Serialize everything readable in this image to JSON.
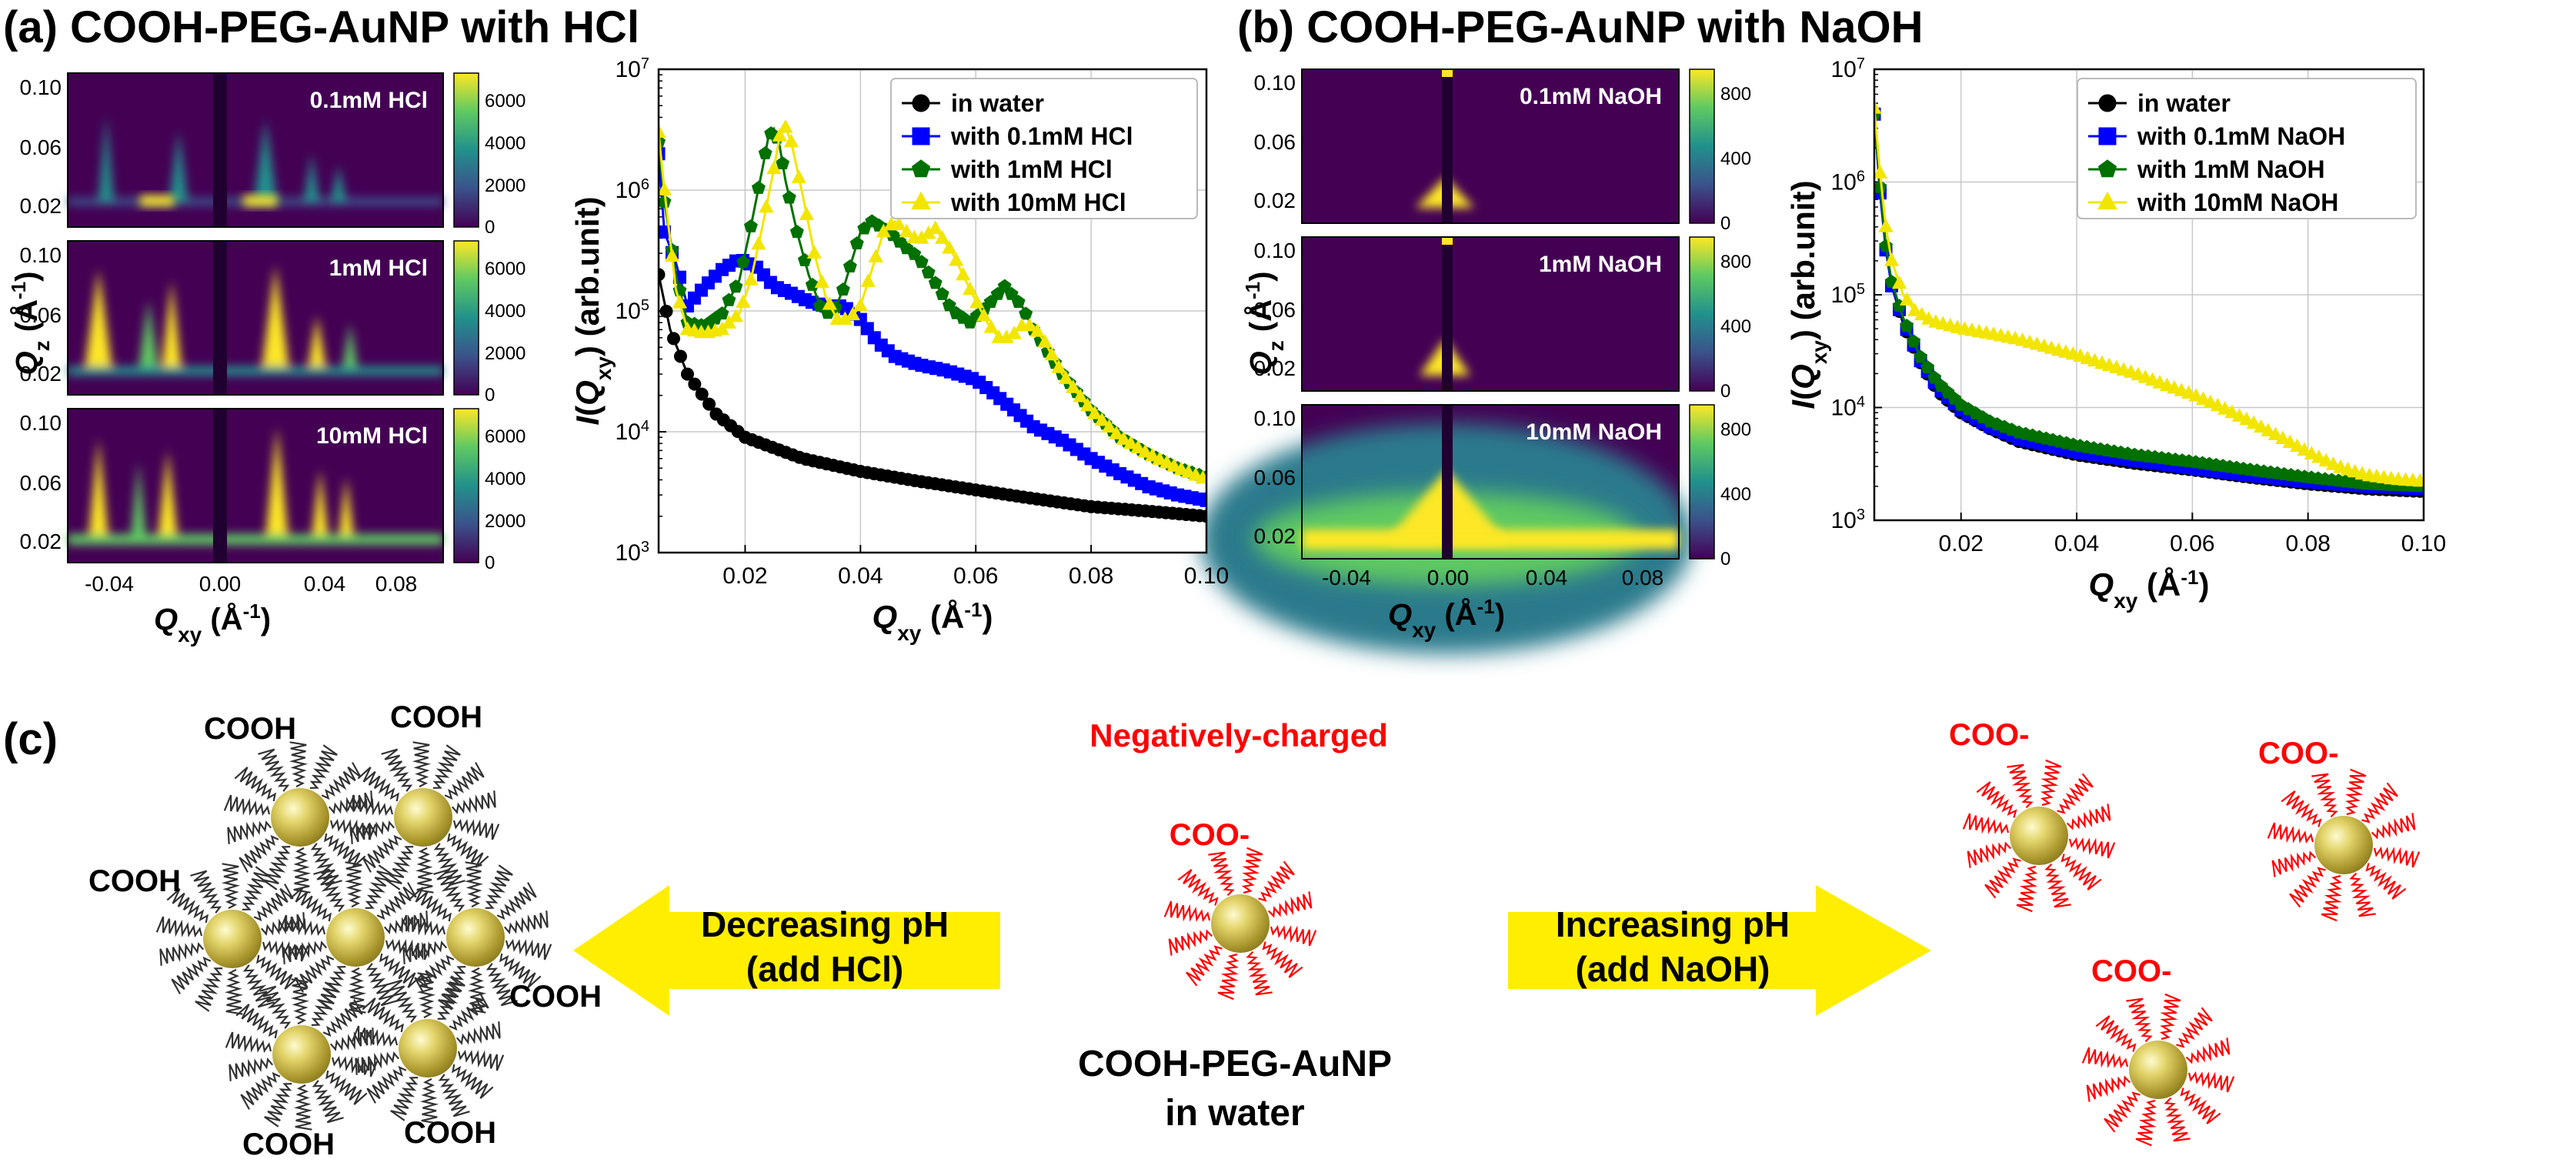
{
  "panels": {
    "a": {
      "letter": "(a)",
      "title": "COOH-PEG-AuNP with HCl"
    },
    "b": {
      "letter": "(b)",
      "title": "COOH-PEG-AuNP with NaOH"
    },
    "c": {
      "letter": "(c)"
    }
  },
  "maps_a": {
    "labels": [
      "0.1mM HCl",
      "1mM HCl",
      "10mM HCl"
    ],
    "colorbar_ticks": [
      "0",
      "2000",
      "4000",
      "6000"
    ],
    "colorbar_range": [
      0,
      7000
    ],
    "y_ticks": [
      "0.02",
      "0.06",
      "0.10"
    ],
    "x_ticks": [
      "-0.04",
      "0.00",
      "0.04",
      "0.08"
    ],
    "xlabel_main": "Q",
    "xlabel_sub": "xy",
    "xlabel_unit": " (Å",
    "xlabel_exp": "-1",
    "xlabel_close": ")",
    "ylabel_main": "Q",
    "ylabel_sub": "z",
    "ylabel_unit": " (Å",
    "ylabel_exp": "-1",
    "ylabel_close": ")"
  },
  "maps_b": {
    "labels": [
      "0.1mM NaOH",
      "1mM NaOH",
      "10mM NaOH"
    ],
    "colorbar_ticks": [
      "0",
      "400",
      "800"
    ],
    "colorbar_range": [
      0,
      950
    ],
    "y_ticks": [
      "0.02",
      "0.06",
      "0.10"
    ],
    "x_ticks": [
      "-0.04",
      "0.00",
      "0.04",
      "0.08"
    ]
  },
  "chart_data": [
    {
      "type": "line",
      "panel": "a",
      "title": "",
      "xlabel": "Qxy (Å-1)",
      "ylabel": "I(Qxy) (arb.unit)",
      "xlim": [
        0.005,
        0.1
      ],
      "ylim": [
        1000,
        10000000
      ],
      "yscale": "log",
      "x_ticks": [
        "0.02",
        "0.04",
        "0.06",
        "0.08",
        "0.10"
      ],
      "x_tick_values": [
        0.02,
        0.04,
        0.06,
        0.08,
        0.1
      ],
      "y_tick_exponents": [
        3,
        4,
        5,
        6,
        7
      ],
      "series": [
        {
          "name": "in water",
          "color": "#000000",
          "marker": "circle",
          "x": [
            0.005,
            0.007,
            0.01,
            0.015,
            0.02,
            0.03,
            0.04,
            0.05,
            0.06,
            0.07,
            0.08,
            0.09,
            0.1
          ],
          "y": [
            200000,
            70000,
            30000,
            14000,
            9000,
            6000,
            4700,
            3900,
            3300,
            2800,
            2400,
            2200,
            2000
          ]
        },
        {
          "name": "with 0.1mM HCl",
          "color": "#0000ff",
          "marker": "square",
          "x": [
            0.005,
            0.006,
            0.008,
            0.01,
            0.013,
            0.016,
            0.019,
            0.022,
            0.025,
            0.028,
            0.031,
            0.034,
            0.037,
            0.04,
            0.043,
            0.046,
            0.05,
            0.055,
            0.06,
            0.063,
            0.066,
            0.07,
            0.075,
            0.08,
            0.085,
            0.09,
            0.095,
            0.1
          ],
          "y": [
            2000000,
            450000,
            250000,
            110000,
            160000,
            220000,
            270000,
            230000,
            160000,
            140000,
            120000,
            110000,
            110000,
            85000,
            55000,
            42000,
            36000,
            32000,
            27000,
            21000,
            16000,
            11000,
            8500,
            6000,
            4500,
            3500,
            3000,
            2700
          ]
        },
        {
          "name": "with 1mM HCl",
          "color": "#007000",
          "marker": "pentagon",
          "x": [
            0.005,
            0.006,
            0.008,
            0.01,
            0.013,
            0.016,
            0.019,
            0.021,
            0.023,
            0.024,
            0.025,
            0.026,
            0.027,
            0.029,
            0.031,
            0.033,
            0.035,
            0.037,
            0.04,
            0.042,
            0.045,
            0.048,
            0.05,
            0.053,
            0.056,
            0.059,
            0.062,
            0.065,
            0.068,
            0.07,
            0.075,
            0.08,
            0.085,
            0.09,
            0.095,
            0.1
          ],
          "y": [
            2500000,
            800000,
            200000,
            80000,
            75000,
            95000,
            180000,
            500000,
            1500000,
            2700000,
            3200000,
            2300000,
            1200000,
            450000,
            200000,
            110000,
            90000,
            150000,
            450000,
            550000,
            450000,
            330000,
            280000,
            170000,
            100000,
            80000,
            110000,
            160000,
            110000,
            70000,
            30000,
            15000,
            9000,
            6500,
            5000,
            4200
          ]
        },
        {
          "name": "with 10mM HCl",
          "color": "#f2e600",
          "marker": "triangle",
          "x": [
            0.005,
            0.006,
            0.008,
            0.01,
            0.013,
            0.016,
            0.019,
            0.021,
            0.023,
            0.025,
            0.026,
            0.027,
            0.028,
            0.03,
            0.032,
            0.034,
            0.036,
            0.038,
            0.04,
            0.042,
            0.044,
            0.046,
            0.048,
            0.05,
            0.053,
            0.056,
            0.059,
            0.062,
            0.064,
            0.066,
            0.068,
            0.07,
            0.072,
            0.075,
            0.08,
            0.085,
            0.09,
            0.095,
            0.1
          ],
          "y": [
            3000000,
            1000000,
            150000,
            70000,
            65000,
            70000,
            95000,
            180000,
            500000,
            1500000,
            2800000,
            3300000,
            2500000,
            900000,
            300000,
            130000,
            85000,
            85000,
            110000,
            220000,
            450000,
            550000,
            450000,
            380000,
            480000,
            300000,
            150000,
            80000,
            60000,
            60000,
            75000,
            75000,
            55000,
            30000,
            15000,
            9000,
            6500,
            5000,
            4000
          ]
        }
      ]
    },
    {
      "type": "line",
      "panel": "b",
      "title": "",
      "xlabel": "Qxy (Å-1)",
      "ylabel": "I(Qxy) (arb.unit)",
      "xlim": [
        0.005,
        0.1
      ],
      "ylim": [
        1000,
        10000000
      ],
      "yscale": "log",
      "x_ticks": [
        "0.02",
        "0.04",
        "0.06",
        "0.08",
        "0.10"
      ],
      "x_tick_values": [
        0.02,
        0.04,
        0.06,
        0.08,
        0.1
      ],
      "y_tick_exponents": [
        3,
        4,
        5,
        6,
        7
      ],
      "series": [
        {
          "name": "in water",
          "color": "#000000",
          "marker": "circle",
          "x": [
            0.005,
            0.006,
            0.007,
            0.008,
            0.01,
            0.013,
            0.016,
            0.02,
            0.025,
            0.03,
            0.04,
            0.05,
            0.06,
            0.07,
            0.08,
            0.09,
            0.1
          ],
          "y": [
            4000000,
            800000,
            250000,
            120000,
            55000,
            25000,
            14000,
            9000,
            6500,
            5000,
            3800,
            3200,
            2800,
            2400,
            2100,
            1900,
            1800
          ]
        },
        {
          "name": "with 0.1mM NaOH",
          "color": "#0000ff",
          "marker": "square",
          "x": [
            0.005,
            0.006,
            0.007,
            0.008,
            0.01,
            0.013,
            0.016,
            0.02,
            0.025,
            0.03,
            0.04,
            0.05,
            0.06,
            0.07,
            0.08,
            0.09,
            0.1
          ],
          "y": [
            4000000,
            800000,
            250000,
            120000,
            58000,
            26000,
            15000,
            9500,
            6800,
            5300,
            4000,
            3400,
            2900,
            2500,
            2200,
            2000,
            1900
          ]
        },
        {
          "name": "with 1mM NaOH",
          "color": "#007000",
          "marker": "pentagon",
          "x": [
            0.005,
            0.006,
            0.007,
            0.008,
            0.01,
            0.013,
            0.016,
            0.02,
            0.025,
            0.03,
            0.04,
            0.05,
            0.06,
            0.07,
            0.08,
            0.09,
            0.1
          ],
          "y": [
            4000000,
            900000,
            270000,
            130000,
            62000,
            28000,
            16500,
            10500,
            7500,
            6000,
            4600,
            3800,
            3300,
            2800,
            2400,
            2100,
            2000
          ]
        },
        {
          "name": "with 10mM NaOH",
          "color": "#f2e600",
          "marker": "triangle",
          "x": [
            0.005,
            0.006,
            0.007,
            0.008,
            0.01,
            0.012,
            0.015,
            0.02,
            0.025,
            0.03,
            0.035,
            0.04,
            0.045,
            0.05,
            0.055,
            0.06,
            0.065,
            0.07,
            0.075,
            0.08,
            0.085,
            0.09,
            0.095,
            0.1
          ],
          "y": [
            4500000,
            1200000,
            400000,
            200000,
            100000,
            72000,
            58000,
            50000,
            45000,
            40000,
            34000,
            29000,
            24000,
            20000,
            16000,
            13000,
            10000,
            7500,
            5500,
            4000,
            3000,
            2500,
            2300,
            2200
          ]
        }
      ]
    }
  ],
  "scheme": {
    "cluster_labels": [
      "COOH",
      "COOH",
      "COOH",
      "COOH",
      "COOH",
      "COOH"
    ],
    "left_arrow_line1": "Decreasing pH",
    "left_arrow_line2": "(add HCl)",
    "right_arrow_line1": "Increasing pH",
    "right_arrow_line2": "(add NaOH)",
    "center_title": "Negatively-charged",
    "center_particle_label": "COO-",
    "center_caption_line1": "COOH-PEG-AuNP",
    "center_caption_line2": "in water",
    "right_labels": [
      "COO-",
      "COO-",
      "COO-"
    ],
    "arrow_color": "#ffee00",
    "charged_color": "#ff0000"
  }
}
